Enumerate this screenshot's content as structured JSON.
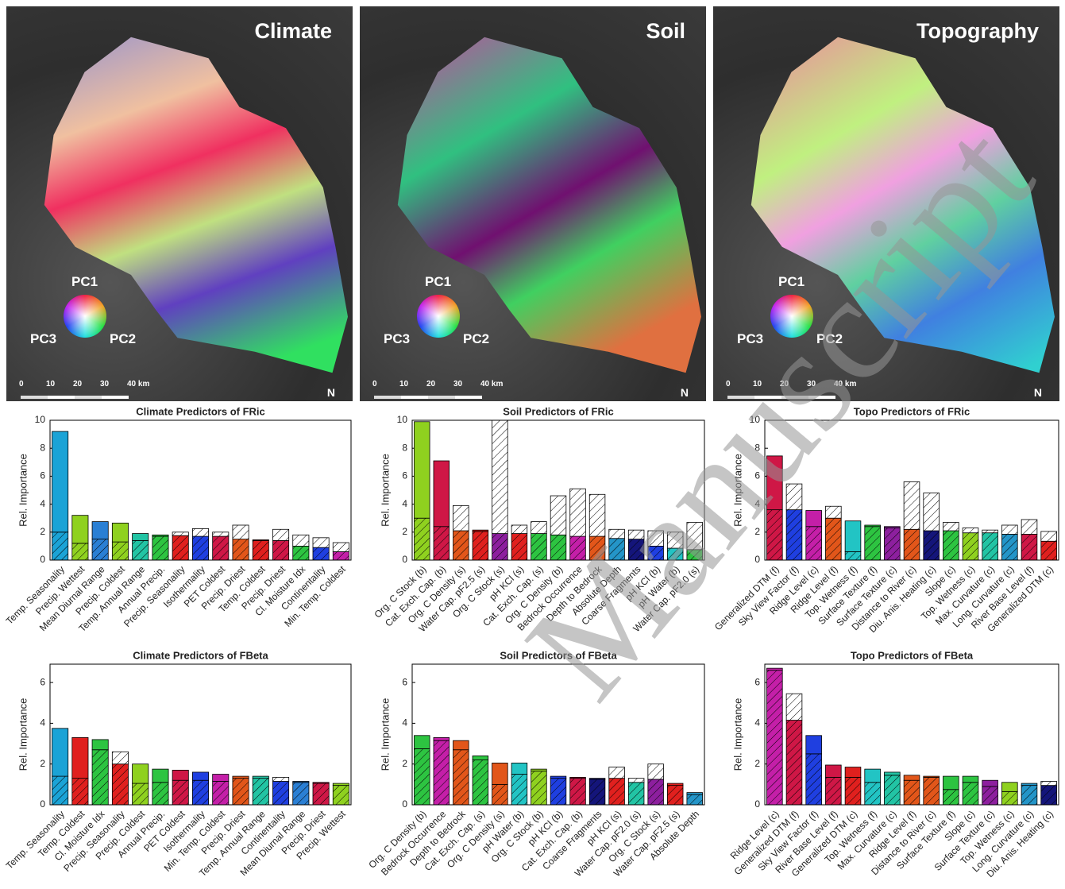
{
  "maps": [
    {
      "title": "Climate"
    },
    {
      "title": "Soil"
    },
    {
      "title": "Topography"
    }
  ],
  "map_legend": {
    "pc1": "PC1",
    "pc2": "PC2",
    "pc3": "PC3",
    "scale": [
      "0",
      "10",
      "20",
      "30",
      "40 km"
    ],
    "north": "N"
  },
  "watermark": "Manuscript",
  "chart_data": [
    {
      "type": "stacked_bar",
      "title": "Climate Predictors of FRic",
      "ylabel": "Rel. Importance",
      "ylim": [
        0,
        10
      ],
      "yticks": [
        0,
        2,
        4,
        6,
        8,
        10
      ],
      "categories": [
        "Temp. Seasonality",
        "Precip. Wettest",
        "Mean Diurnal Range",
        "Precip. Coldest",
        "Temp. Annual Range",
        "Annual Precip.",
        "Precip. Seasonality",
        "Isothermality",
        "PET Coldest",
        "Precip. Driest",
        "Temp. Coldest",
        "Precip. Driest",
        "Cl. Moisture Idx",
        "Continentality",
        "Min. Temp. Coldest"
      ],
      "colors": [
        "#1ba3d6",
        "#8fd11f",
        "#2a7fd4",
        "#8fd11f",
        "#22c4a4",
        "#2dc441",
        "#e0201e",
        "#1f3fe0",
        "#cf1746",
        "#e2561a",
        "#e0201e",
        "#cf1746",
        "#2dc441",
        "#1f3fe0",
        "#c41fa8"
      ],
      "series": [
        {
          "values": [
            2.0,
            1.2,
            1.5,
            1.3,
            1.4,
            1.7,
            1.75,
            1.7,
            1.7,
            1.5,
            1.4,
            1.4,
            1.0,
            0.9,
            0.6
          ]
        },
        {
          "values": [
            7.2,
            2.0,
            1.25,
            1.35,
            0.5,
            0.1,
            0.25,
            0.55,
            0.3,
            1.0,
            0.05,
            0.8,
            0.8,
            0.7,
            0.65
          ]
        }
      ],
      "upper_hatched": [
        false,
        false,
        false,
        false,
        false,
        false,
        true,
        true,
        true,
        true,
        false,
        true,
        true,
        true,
        true
      ]
    },
    {
      "type": "stacked_bar",
      "title": "Soil Predictors of FRic",
      "ylabel": "Rel. Importance",
      "ylim": [
        0,
        10
      ],
      "yticks": [
        0,
        2,
        4,
        6,
        8,
        10
      ],
      "categories": [
        "Org. C Stock (b)",
        "Cat. Exch. Cap. (b)",
        "Org. C Density (s)",
        "Water Cap. pF2.5 (s)",
        "Org. C Stock (s)",
        "pH KCl (s)",
        "Cat. Exch. Cap. (s)",
        "Org. C Density (b)",
        "Bedrock Occurrence",
        "Depth to Bedrock",
        "Absolute Depth",
        "Coarse Fragments",
        "pH KCl (b)",
        "pH Water (b)",
        "Water Cap. pF2.0 (s)"
      ],
      "colors": [
        "#8fd11f",
        "#cf1746",
        "#e2561a",
        "#e0201e",
        "#8d1f9e",
        "#e0201e",
        "#2dc441",
        "#2dc441",
        "#c41fa8",
        "#e2561a",
        "#2495c8",
        "#14157a",
        "#1f3fe0",
        "#22c4c4",
        "#2dc441"
      ],
      "series": [
        {
          "values": [
            3.0,
            2.4,
            2.1,
            2.05,
            1.9,
            1.9,
            1.9,
            1.8,
            1.7,
            1.7,
            1.55,
            1.5,
            1.0,
            0.85,
            0.75
          ]
        },
        {
          "values": [
            6.9,
            4.7,
            1.8,
            0.1,
            8.1,
            0.6,
            0.85,
            2.8,
            3.4,
            3.0,
            0.65,
            0.65,
            1.1,
            1.15,
            1.95
          ]
        }
      ],
      "upper_hatched": [
        false,
        false,
        true,
        false,
        true,
        true,
        true,
        true,
        true,
        true,
        true,
        true,
        true,
        true,
        true
      ]
    },
    {
      "type": "stacked_bar",
      "title": "Topo Predictors of FRic",
      "ylabel": "Rel. Importance",
      "ylim": [
        0,
        10
      ],
      "yticks": [
        0,
        2,
        4,
        6,
        8,
        10
      ],
      "categories": [
        "Generalized DTM (f)",
        "Sky View Factor (f)",
        "Ridge Level (c)",
        "Ridge Level (f)",
        "Top. Wetness (f)",
        "Surface Texture (f)",
        "Surface Texture (c)",
        "Distance to River (c)",
        "Diu. Anis. Heating (c)",
        "Slope (c)",
        "Top. Wetness (c)",
        "Max. Curvature (c)",
        "Long. Curvature (c)",
        "River Base Level (f)",
        "Generalized DTM (c)"
      ],
      "colors": [
        "#cf1746",
        "#1f3fe0",
        "#c41fa8",
        "#e2561a",
        "#22c4c4",
        "#2dc441",
        "#8d1f9e",
        "#e2561a",
        "#14157a",
        "#2dc441",
        "#8fd11f",
        "#22c4a4",
        "#2495c8",
        "#cf1746",
        "#e0201e"
      ],
      "series": [
        {
          "values": [
            3.6,
            3.6,
            2.4,
            3.0,
            0.6,
            2.4,
            2.3,
            2.2,
            2.1,
            2.1,
            1.95,
            1.95,
            1.85,
            1.85,
            1.35
          ]
        },
        {
          "values": [
            3.85,
            1.85,
            1.15,
            0.85,
            2.2,
            0.1,
            0.1,
            3.4,
            2.7,
            0.6,
            0.35,
            0.2,
            0.65,
            1.05,
            0.7
          ]
        }
      ],
      "upper_hatched": [
        false,
        true,
        false,
        true,
        false,
        false,
        false,
        true,
        true,
        true,
        true,
        true,
        true,
        true,
        true
      ]
    },
    {
      "type": "stacked_bar",
      "title": "Climate Predictors of FBeta",
      "ylabel": "Rel. Importance",
      "ylim": [
        0,
        6.9
      ],
      "yticks": [
        0,
        2,
        4,
        6
      ],
      "categories": [
        "Temp. Seasonality",
        "Temp. Coldest",
        "Cl. Moisture Idx",
        "Precip. Seasonality",
        "Precip. Coldest",
        "Annual Precip.",
        "PET Coldest",
        "Isothermality",
        "Min. Temp. Coldest",
        "Precip. Driest",
        "Temp. Annual Range",
        "Continentality",
        "Mean Diurnal Range",
        "Precip. Driest",
        "Precip. Wettest"
      ],
      "colors": [
        "#1ba3d6",
        "#e0201e",
        "#2dc441",
        "#e0201e",
        "#8fd11f",
        "#2dc441",
        "#cf1746",
        "#1f3fe0",
        "#c41fa8",
        "#e2561a",
        "#22c4a4",
        "#1f3fe0",
        "#2a7fd4",
        "#cf1746",
        "#8fd11f"
      ],
      "series": [
        {
          "values": [
            1.4,
            1.3,
            2.7,
            2.0,
            1.05,
            1.1,
            1.2,
            1.2,
            1.15,
            1.3,
            1.3,
            1.15,
            1.1,
            1.05,
            0.95
          ]
        },
        {
          "values": [
            2.35,
            2.0,
            0.5,
            0.6,
            0.95,
            0.65,
            0.5,
            0.4,
            0.35,
            0.1,
            0.1,
            0.2,
            0.05,
            0.05,
            0.1
          ]
        }
      ],
      "upper_hatched": [
        false,
        false,
        false,
        true,
        false,
        false,
        false,
        false,
        false,
        false,
        false,
        true,
        false,
        false,
        false
      ]
    },
    {
      "type": "stacked_bar",
      "title": "Soil Predictors of FBeta",
      "ylabel": "Rel. Importance",
      "ylim": [
        0,
        6.9
      ],
      "yticks": [
        0,
        2,
        4,
        6
      ],
      "categories": [
        "Org. C Density (b)",
        "Bedrock Occurrence",
        "Depth to Bedrock",
        "Cat. Exch. Cap. (s)",
        "Org. C Density (s)",
        "pH Water (b)",
        "Org. C Stock (b)",
        "pH KCl (b)",
        "Cat. Exch. Cap. (b)",
        "Coarse Fragments",
        "pH KCl (s)",
        "Water Cap. pF2.0 (s)",
        "Org. C Stock (s)",
        "Water Cap. pF2.5 (s)",
        "Absolute Depth"
      ],
      "colors": [
        "#2dc441",
        "#c41fa8",
        "#e2561a",
        "#2dc441",
        "#e2561a",
        "#22c4c4",
        "#8fd11f",
        "#1f3fe0",
        "#cf1746",
        "#14157a",
        "#e0201e",
        "#22c4a4",
        "#8d1f9e",
        "#e0201e",
        "#2495c8"
      ],
      "series": [
        {
          "values": [
            2.75,
            3.15,
            2.7,
            2.2,
            1.0,
            1.5,
            1.65,
            1.3,
            1.3,
            1.25,
            1.3,
            1.1,
            1.25,
            0.95,
            0.5
          ]
        },
        {
          "values": [
            0.65,
            0.15,
            0.45,
            0.2,
            1.05,
            0.55,
            0.1,
            0.1,
            0.05,
            0.05,
            0.55,
            0.2,
            0.75,
            0.1,
            0.1
          ]
        }
      ],
      "upper_hatched": [
        false,
        false,
        false,
        false,
        false,
        false,
        false,
        false,
        false,
        false,
        true,
        true,
        true,
        false,
        false
      ]
    },
    {
      "type": "stacked_bar",
      "title": "Topo Predictors of FBeta",
      "ylabel": "Rel. Importance",
      "ylim": [
        0,
        6.9
      ],
      "yticks": [
        0,
        2,
        4,
        6
      ],
      "categories": [
        "Ridge Level (c)",
        "Generalized DTM (f)",
        "Sky View Factor (f)",
        "River Base Level (f)",
        "Generalized DTM (c)",
        "Top. Wetness (f)",
        "Max. Curvature (c)",
        "Ridge Level (f)",
        "Distance to River (c)",
        "Surface Texture (f)",
        "Slope (c)",
        "Surface Texture (c)",
        "Top. Wetness (c)",
        "Long. Curvature (c)",
        "Diu. Anis. Heating (c)"
      ],
      "colors": [
        "#c41fa8",
        "#cf1746",
        "#1f3fe0",
        "#cf1746",
        "#e0201e",
        "#22c4c4",
        "#22c4a4",
        "#e2561a",
        "#e2561a",
        "#2dc441",
        "#2dc441",
        "#8d1f9e",
        "#8fd11f",
        "#2495c8",
        "#14157a"
      ],
      "series": [
        {
          "values": [
            6.6,
            4.15,
            2.5,
            1.35,
            1.35,
            1.1,
            1.45,
            1.2,
            1.35,
            0.75,
            1.1,
            0.9,
            0.65,
            0.95,
            0.95
          ]
        },
        {
          "values": [
            0.1,
            1.3,
            0.9,
            0.6,
            0.5,
            0.65,
            0.15,
            0.25,
            0.05,
            0.65,
            0.3,
            0.3,
            0.45,
            0.1,
            0.2
          ]
        }
      ],
      "upper_hatched": [
        false,
        true,
        false,
        false,
        false,
        false,
        false,
        false,
        false,
        false,
        false,
        false,
        false,
        false,
        true
      ]
    }
  ]
}
